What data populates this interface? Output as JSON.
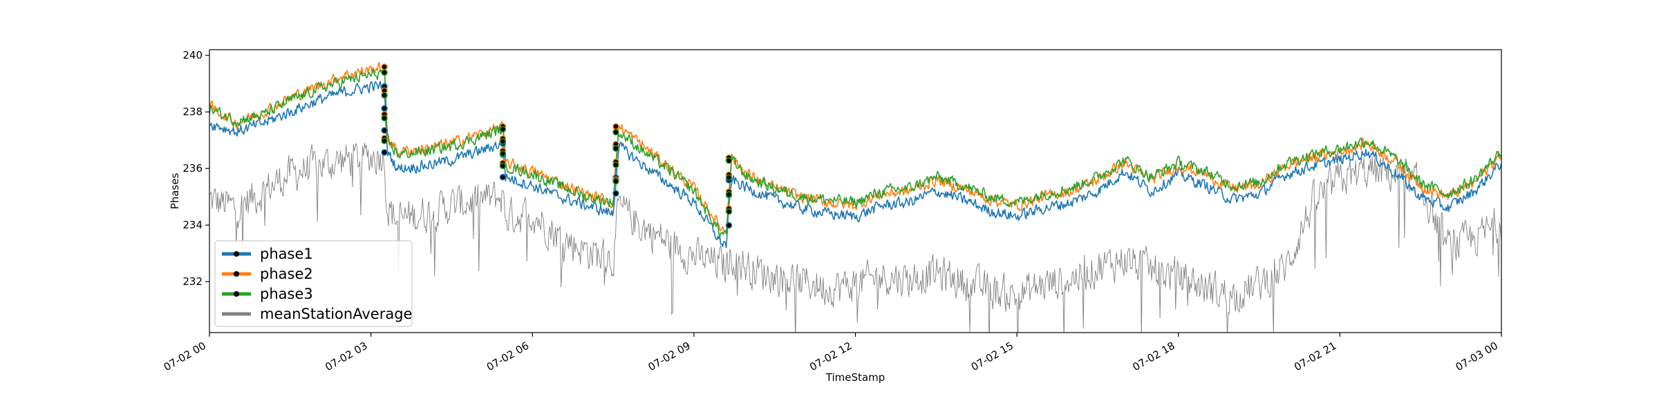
{
  "chart_data": {
    "type": "line",
    "title": "",
    "xlabel": "TimeStamp",
    "ylabel": "Phases",
    "x_range": [
      "07-02 00",
      "07-03 00"
    ],
    "ylim": [
      230.2,
      240.2
    ],
    "x_ticks": [
      "07-02 00",
      "07-02 03",
      "07-02 06",
      "07-02 09",
      "07-02 12",
      "07-02 15",
      "07-02 18",
      "07-02 21",
      "07-03 00"
    ],
    "y_ticks": [
      232,
      234,
      236,
      238,
      240
    ],
    "grid": false,
    "legend_position": "lower-left",
    "x_hours": [
      0,
      0.5,
      1,
      1.5,
      2,
      2.5,
      3,
      3.25,
      3.3,
      3.5,
      4,
      4.5,
      5,
      5.45,
      5.5,
      6,
      6.5,
      7,
      7.5,
      7.6,
      8,
      8.5,
      9,
      9.5,
      9.6,
      9.7,
      10,
      10.5,
      11,
      11.5,
      12,
      12.5,
      13,
      13.5,
      14,
      14.5,
      15,
      15.5,
      16,
      16.5,
      17,
      17.5,
      18,
      18.5,
      19,
      19.5,
      20,
      20.5,
      21,
      21.5,
      22,
      22.5,
      23,
      23.5,
      24
    ],
    "series": [
      {
        "name": "phase1",
        "color": "#1f77b4",
        "marker_color": "#000000",
        "values": [
          237.6,
          237.3,
          237.6,
          238.0,
          238.4,
          238.7,
          238.9,
          238.9,
          236.6,
          236.0,
          236.1,
          236.3,
          236.6,
          236.9,
          235.7,
          235.4,
          235.0,
          234.7,
          234.4,
          236.8,
          236.2,
          235.5,
          234.8,
          233.4,
          233.3,
          235.6,
          235.3,
          234.9,
          234.6,
          234.4,
          234.3,
          234.7,
          234.8,
          235.2,
          234.9,
          234.5,
          234.3,
          234.6,
          234.8,
          235.2,
          235.9,
          235.2,
          235.8,
          235.4,
          234.9,
          235.1,
          235.8,
          236.1,
          236.3,
          236.6,
          235.9,
          235.0,
          234.6,
          235.2,
          236.2
        ]
      },
      {
        "name": "phase2",
        "color": "#ff7f0e",
        "marker_color": "#000000",
        "values": [
          238.2,
          237.6,
          238.0,
          238.5,
          238.9,
          239.3,
          239.5,
          239.6,
          237.1,
          236.6,
          236.7,
          236.9,
          237.2,
          237.5,
          236.2,
          235.9,
          235.5,
          235.1,
          234.8,
          237.5,
          236.9,
          236.1,
          235.3,
          233.9,
          233.8,
          236.4,
          235.8,
          235.3,
          235.0,
          234.8,
          234.7,
          235.1,
          235.2,
          235.6,
          235.3,
          234.9,
          234.7,
          235.0,
          235.2,
          235.6,
          236.2,
          235.6,
          236.1,
          235.8,
          235.3,
          235.4,
          236.1,
          236.4,
          236.6,
          236.9,
          236.3,
          235.4,
          235.0,
          235.5,
          236.5
        ]
      },
      {
        "name": "phase3",
        "color": "#2ca02c",
        "marker_color": "#000000",
        "values": [
          238.1,
          237.7,
          237.9,
          238.4,
          238.8,
          239.1,
          239.3,
          239.4,
          237.0,
          236.5,
          236.6,
          236.8,
          237.1,
          237.4,
          236.1,
          235.8,
          235.4,
          235.0,
          234.8,
          237.3,
          236.7,
          236.0,
          235.2,
          233.7,
          233.7,
          236.3,
          235.7,
          235.3,
          235.0,
          234.9,
          234.8,
          235.2,
          235.3,
          235.7,
          235.4,
          235.0,
          234.8,
          235.1,
          235.3,
          235.7,
          236.3,
          235.7,
          236.2,
          235.9,
          235.4,
          235.5,
          236.2,
          236.5,
          236.7,
          237.0,
          236.4,
          235.5,
          235.1,
          235.6,
          236.6
        ]
      },
      {
        "name": "meanStationAverage",
        "color": "#808080",
        "values": [
          234.9,
          234.6,
          235.2,
          235.8,
          236.1,
          236.3,
          236.4,
          236.5,
          234.6,
          234.2,
          234.4,
          234.7,
          234.9,
          235.0,
          234.3,
          234.4,
          233.6,
          233.1,
          232.8,
          234.6,
          234.0,
          233.4,
          232.9,
          232.6,
          232.5,
          232.9,
          232.5,
          232.2,
          232.0,
          231.8,
          231.9,
          232.2,
          232.1,
          232.3,
          232.0,
          231.7,
          231.5,
          231.9,
          232.1,
          232.5,
          232.8,
          232.4,
          232.2,
          231.8,
          231.5,
          231.9,
          232.5,
          234.8,
          235.6,
          235.9,
          235.8,
          235.4,
          233.2,
          233.5,
          234.1
        ]
      }
    ],
    "step_markers_hours": [
      3.25,
      5.45,
      7.55,
      9.65
    ]
  }
}
